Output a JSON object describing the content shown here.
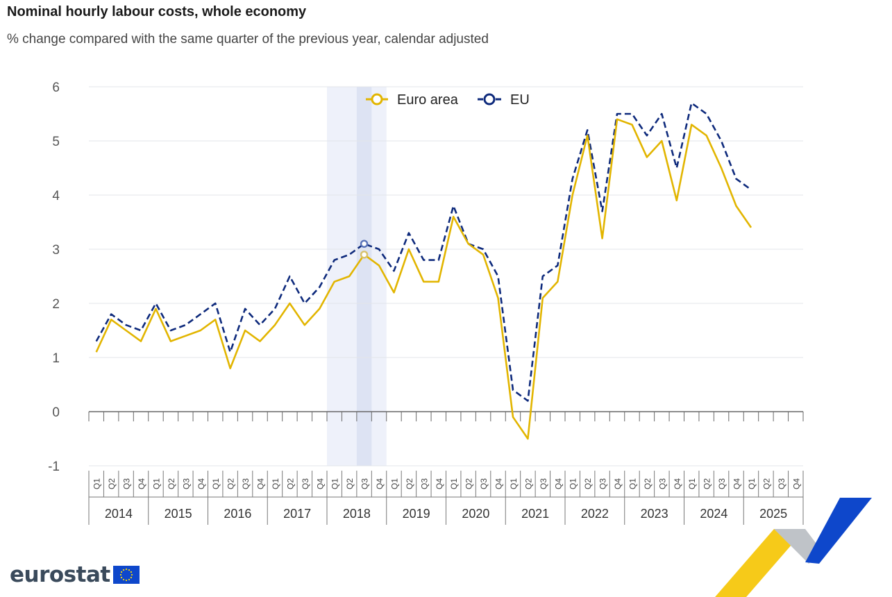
{
  "header": {
    "title": "Nominal hourly labour costs, whole economy",
    "subtitle": "% change compared with the same quarter of the previous year, calendar adjusted"
  },
  "branding": {
    "logo_text": "eurostat"
  },
  "colors": {
    "euro_area": "#e2b500",
    "eu": "#0e2a7c",
    "highlight_band": "#eef1fa",
    "highlight_col": "#dde3f3",
    "grid": "#e3e5ea"
  },
  "chart_data": {
    "type": "line",
    "title": "Nominal hourly labour costs, whole economy",
    "subtitle": "% change compared with the same quarter of the previous year, calendar adjusted",
    "ylim": [
      -1,
      6
    ],
    "yticks": [
      -1,
      0,
      1,
      2,
      3,
      4,
      5,
      6
    ],
    "grid": true,
    "legend_position": "top",
    "quarters": [
      "Q1",
      "Q2",
      "Q3",
      "Q4"
    ],
    "years": [
      "2014",
      "2015",
      "2016",
      "2017",
      "2018",
      "2019",
      "2020",
      "2021",
      "2022",
      "2023",
      "2024",
      "2025"
    ],
    "highlight": {
      "year": "2018",
      "quarter": "Q3",
      "index": 18
    },
    "series": [
      {
        "name": "Euro area",
        "color": "#e2b500",
        "dash": false,
        "values": [
          1.1,
          1.7,
          1.5,
          1.3,
          1.9,
          1.3,
          1.4,
          1.5,
          1.7,
          0.8,
          1.5,
          1.3,
          1.6,
          2.0,
          1.6,
          1.9,
          2.4,
          2.5,
          2.9,
          2.7,
          2.2,
          3.0,
          2.4,
          2.4,
          3.6,
          3.1,
          2.9,
          2.1,
          -0.1,
          -0.5,
          2.1,
          2.4,
          4.0,
          5.1,
          3.2,
          5.4,
          5.3,
          4.7,
          5.0,
          3.9,
          5.3,
          5.1,
          4.5,
          3.8,
          3.4,
          null,
          null,
          null
        ]
      },
      {
        "name": "EU",
        "color": "#0e2a7c",
        "dash": true,
        "values": [
          1.3,
          1.8,
          1.6,
          1.5,
          2.0,
          1.5,
          1.6,
          1.8,
          2.0,
          1.1,
          1.9,
          1.6,
          1.9,
          2.5,
          2.0,
          2.3,
          2.8,
          2.9,
          3.1,
          3.0,
          2.6,
          3.3,
          2.8,
          2.8,
          3.8,
          3.1,
          3.0,
          2.5,
          0.4,
          0.2,
          2.5,
          2.7,
          4.3,
          5.2,
          3.7,
          5.5,
          5.5,
          5.1,
          5.5,
          4.5,
          5.7,
          5.5,
          5.0,
          4.3,
          4.1,
          null,
          null,
          null
        ]
      }
    ]
  }
}
